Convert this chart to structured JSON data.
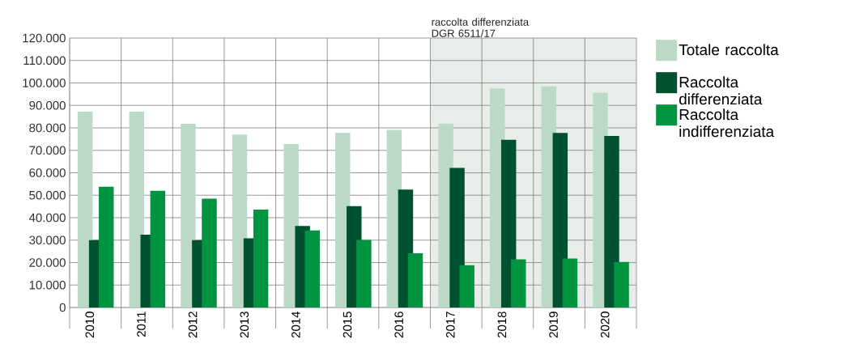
{
  "chart_data": {
    "type": "bar",
    "categories": [
      "2010",
      "2011",
      "2012",
      "2013",
      "2014",
      "2015",
      "2016",
      "2017",
      "2018",
      "2019",
      "2020"
    ],
    "series": [
      {
        "name": "Totale raccolta",
        "color": "#bcd9c5",
        "values": [
          87200,
          87200,
          81800,
          77000,
          72800,
          77700,
          79100,
          81900,
          97500,
          98500,
          95700
        ]
      },
      {
        "name": "Raccolta differenziata",
        "color": "#00512f",
        "values": [
          30000,
          32400,
          30000,
          30800,
          36300,
          45100,
          52500,
          62200,
          74700,
          77700,
          76400
        ]
      },
      {
        "name": "Raccolta indifferenziata",
        "color": "#009340",
        "values": [
          53800,
          52000,
          48500,
          43600,
          34300,
          30100,
          24100,
          18800,
          21400,
          21800,
          20300
        ]
      }
    ],
    "ylim": [
      0,
      120000
    ],
    "yticks": [
      {
        "value": 0,
        "label": "0"
      },
      {
        "value": 10000,
        "label": "10.000"
      },
      {
        "value": 20000,
        "label": "20.000"
      },
      {
        "value": 30000,
        "label": "30.000"
      },
      {
        "value": 40000,
        "label": "40.000"
      },
      {
        "value": 50000,
        "label": "50.000"
      },
      {
        "value": 60000,
        "label": "60.000"
      },
      {
        "value": 70000,
        "label": "70.000"
      },
      {
        "value": 80000,
        "label": "80.000"
      },
      {
        "value": 90000,
        "label": "90.000"
      },
      {
        "value": 100000,
        "label": "100.000"
      },
      {
        "value": 110000,
        "label": "110.000"
      },
      {
        "value": 120000,
        "label": "120.000"
      }
    ],
    "bands": [
      {
        "axis": "x",
        "from": "2017",
        "to": "2020",
        "label": "raccolta differenziata DGR 6511/17",
        "color": "#e8ede9"
      }
    ],
    "grid": true,
    "legend": "right"
  }
}
